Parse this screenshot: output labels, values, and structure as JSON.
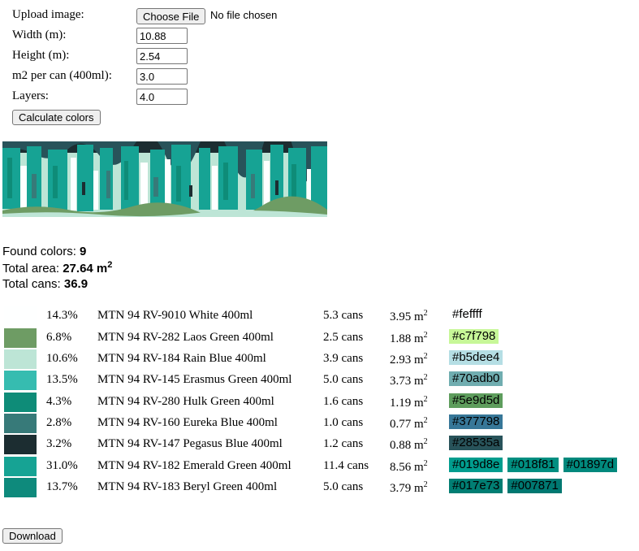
{
  "form": {
    "upload_label": "Upload image:",
    "choose_file_label": "Choose File",
    "file_status": "No file chosen",
    "width_label": "Width (m):",
    "width_value": "10.88",
    "height_label": "Height (m):",
    "height_value": "2.54",
    "m2_label": "m2 per can (400ml):",
    "m2_value": "3.0",
    "layers_label": "Layers:",
    "layers_value": "4.0",
    "calculate_label": "Calculate colors"
  },
  "summary": {
    "found_label": "Found colors: ",
    "found_value": "9",
    "area_label": "Total area: ",
    "area_value": "27.64 m",
    "area_sup": "2",
    "cans_label": "Total cans: ",
    "cans_value": "36.9"
  },
  "colors": [
    {
      "swatch": "#feffff",
      "pct": "14.3%",
      "name": "MTN 94 RV-9010 White 400ml",
      "cans": "5.3 cans",
      "area": "3.95 m",
      "hexes": [
        {
          "text": "#feffff",
          "bg": "#feffff"
        }
      ]
    },
    {
      "swatch": "#6e9c64",
      "pct": "6.8%",
      "name": "MTN 94 RV-282 Laos Green 400ml",
      "cans": "2.5 cans",
      "area": "1.88 m",
      "hexes": [
        {
          "text": "#c7f798",
          "bg": "#c7f798"
        }
      ]
    },
    {
      "swatch": "#bde5d6",
      "pct": "10.6%",
      "name": "MTN 94 RV-184 Rain Blue 400ml",
      "cans": "3.9 cans",
      "area": "2.93 m",
      "hexes": [
        {
          "text": "#b5dee4",
          "bg": "#b5dee4"
        }
      ]
    },
    {
      "swatch": "#36bcb0",
      "pct": "13.5%",
      "name": "MTN 94 RV-145 Erasmus Green 400ml",
      "cans": "5.0 cans",
      "area": "3.73 m",
      "hexes": [
        {
          "text": "#70adb0",
          "bg": "#70adb0"
        }
      ]
    },
    {
      "swatch": "#0e8c78",
      "pct": "4.3%",
      "name": "MTN 94 RV-280 Hulk Green 400ml",
      "cans": "1.6 cans",
      "area": "1.19 m",
      "hexes": [
        {
          "text": "#5e9d5d",
          "bg": "#5e9d5d"
        }
      ]
    },
    {
      "swatch": "#377a79",
      "pct": "2.8%",
      "name": "MTN 94 RV-160 Eureka Blue 400ml",
      "cans": "1.0 cans",
      "area": "0.77 m",
      "hexes": [
        {
          "text": "#377798",
          "bg": "#377798"
        }
      ]
    },
    {
      "swatch": "#1c2d31",
      "pct": "3.2%",
      "name": "MTN 94 RV-147 Pegasus Blue 400ml",
      "cans": "1.2 cans",
      "area": "0.88 m",
      "hexes": [
        {
          "text": "#28535a",
          "bg": "#28535a"
        }
      ]
    },
    {
      "swatch": "#16a394",
      "pct": "31.0%",
      "name": "MTN 94 RV-182 Emerald Green 400ml",
      "cans": "11.4 cans",
      "area": "8.56 m",
      "hexes": [
        {
          "text": "#019d8e",
          "bg": "#019d8e"
        },
        {
          "text": "#018f81",
          "bg": "#018f81"
        },
        {
          "text": "#01897d",
          "bg": "#01897d"
        }
      ]
    },
    {
      "swatch": "#0e8a7c",
      "pct": "13.7%",
      "name": "MTN 94 RV-183 Beryl Green 400ml",
      "cans": "5.0 cans",
      "area": "3.79 m",
      "hexes": [
        {
          "text": "#017e73",
          "bg": "#017e73"
        },
        {
          "text": "#007871",
          "bg": "#007871"
        }
      ]
    }
  ],
  "area_unit_sup": "2",
  "download_label": "Download"
}
